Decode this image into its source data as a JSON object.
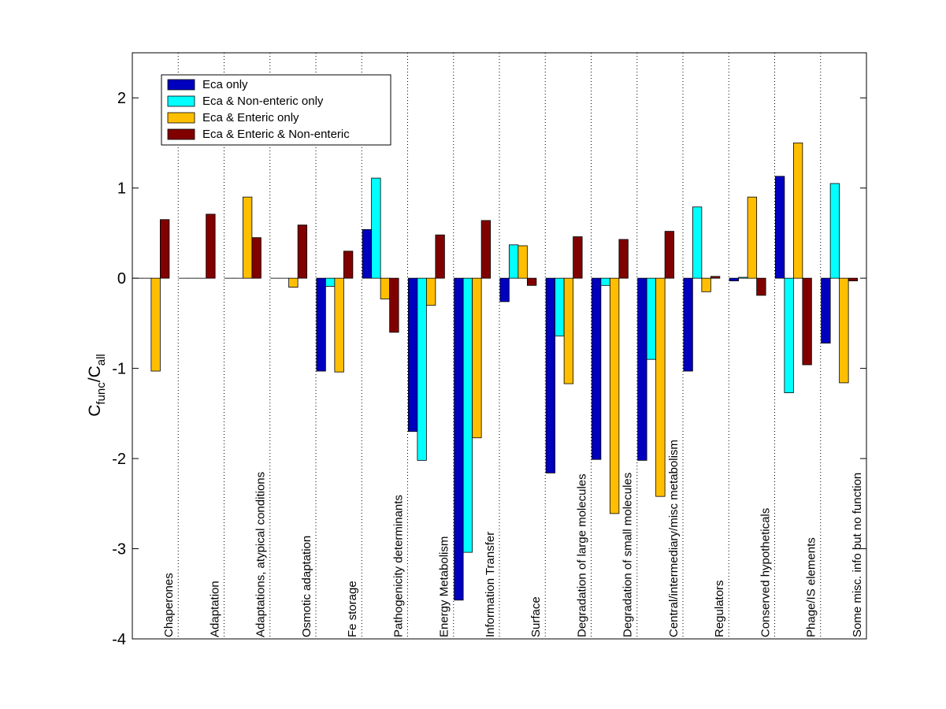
{
  "chart_data": {
    "type": "bar",
    "ylabel": {
      "main": "C",
      "sub1": "func",
      "sep": "/C",
      "sub2": "all"
    },
    "ylim": [
      -4,
      2.5
    ],
    "yticks": [
      {
        "value": 2,
        "label": "2"
      },
      {
        "value": 1,
        "label": "1"
      },
      {
        "value": 0,
        "label": "0"
      },
      {
        "value": -1,
        "label": "-1"
      },
      {
        "value": -2,
        "label": "-2"
      },
      {
        "value": -3,
        "label": "-3"
      },
      {
        "value": -4,
        "label": "-4"
      }
    ],
    "legend_position": "top-left",
    "category_separators": "dotted",
    "categories": [
      "Chaperones",
      "Adaptation",
      "Adaptations, atypical conditions",
      "Osmotic adaptation",
      "Fe storage",
      "Pathogenicity determinants",
      "Energy Metabolism",
      "Information Transfer",
      "Surface",
      "Degradation of large molecules",
      "Degradation of small molecules",
      "Central/intermediary/misc metabolism",
      "Regulators",
      "Conserved hypotheticals",
      "Phage/IS elements",
      "Some misc. info but no function"
    ],
    "series": [
      {
        "name": "Eca only",
        "color": "#0000bf",
        "values": [
          0,
          0,
          0,
          0,
          -1.03,
          0.54,
          -1.7,
          -3.57,
          -0.26,
          -2.16,
          -2.01,
          -2.02,
          -1.03,
          -0.03,
          1.13,
          -0.72
        ]
      },
      {
        "name": "Eca & Non-enteric only",
        "color": "#00ffff",
        "values": [
          0,
          0,
          0,
          0,
          -0.09,
          1.11,
          -2.02,
          -3.04,
          0.37,
          -0.64,
          -0.08,
          -0.9,
          0.79,
          0.01,
          -1.27,
          1.05
        ]
      },
      {
        "name": "Eca & Enteric only",
        "color": "#ffbf00",
        "values": [
          -1.03,
          0,
          0.9,
          -0.1,
          -1.04,
          -0.23,
          -0.3,
          -1.77,
          0.36,
          -1.17,
          -2.61,
          -2.42,
          -0.15,
          0.9,
          1.5,
          -1.16
        ]
      },
      {
        "name": "Eca & Enteric & Non-enteric",
        "color": "#800000",
        "values": [
          0.65,
          0.71,
          0.45,
          0.59,
          0.3,
          -0.6,
          0.48,
          0.64,
          -0.08,
          0.46,
          0.43,
          0.52,
          0.02,
          -0.19,
          -0.96,
          -0.03
        ]
      }
    ]
  }
}
